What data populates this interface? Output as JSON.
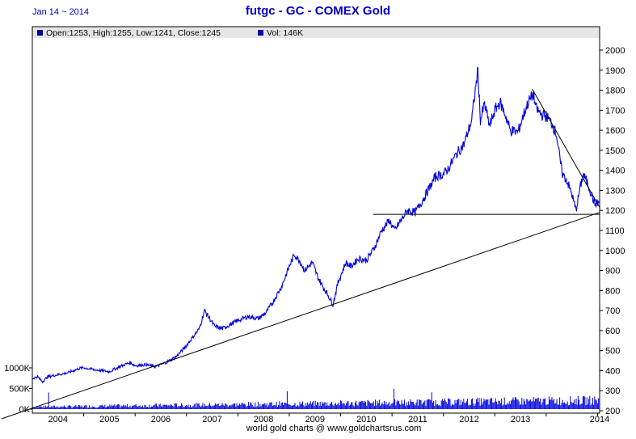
{
  "header": {
    "date": "Jan 14 ~ 2014",
    "title": "futgc - GC - COMEX Gold"
  },
  "legend": {
    "price_label": "Open:1253, High:1255, Low:1241, Close:1245",
    "volume_label": "Vol: 146K"
  },
  "footer": {
    "source": "world gold charts @ www.goldchartsrus.com"
  },
  "colors": {
    "series": "#0000e0",
    "legend_bg": "#e6e6e6",
    "title": "#0000cc",
    "trendline": "#000000"
  },
  "chart_data": {
    "type": "line",
    "title": "futgc - GC - COMEX Gold",
    "y_ticks": [
      200,
      300,
      400,
      500,
      600,
      700,
      800,
      900,
      1000,
      1100,
      1200,
      1300,
      1400,
      1500,
      1600,
      1700,
      1800,
      1900,
      2000
    ],
    "ylim": [
      200,
      2000
    ],
    "volume_ticks": [
      "0K",
      "500K",
      "1000K"
    ],
    "volume_max": 1500,
    "x_ticks": [
      "2004",
      "2005",
      "2006",
      "2007",
      "2008",
      "2009",
      "2010",
      "2011",
      "2012",
      "2013",
      "2014"
    ],
    "xlim": [
      2003.0,
      2014.04
    ],
    "grid": false,
    "series": [
      {
        "name": "Close",
        "x": [
          2003.0,
          2003.1,
          2003.2,
          2003.3,
          2003.5,
          2003.7,
          2003.9,
          2004.0,
          2004.2,
          2004.35,
          2004.5,
          2004.7,
          2004.9,
          2005.0,
          2005.2,
          2005.4,
          2005.6,
          2005.8,
          2005.95,
          2006.1,
          2006.25,
          2006.35,
          2006.45,
          2006.55,
          2006.7,
          2006.85,
          2007.0,
          2007.2,
          2007.4,
          2007.55,
          2007.7,
          2007.85,
          2008.0,
          2008.1,
          2008.2,
          2008.3,
          2008.45,
          2008.55,
          2008.65,
          2008.75,
          2008.85,
          2008.95,
          2009.1,
          2009.2,
          2009.35,
          2009.5,
          2009.65,
          2009.8,
          2009.95,
          2010.05,
          2010.15,
          2010.3,
          2010.45,
          2010.55,
          2010.7,
          2010.85,
          2011.0,
          2011.1,
          2011.25,
          2011.4,
          2011.55,
          2011.62,
          2011.67,
          2011.72,
          2011.8,
          2011.9,
          2012.0,
          2012.1,
          2012.2,
          2012.3,
          2012.45,
          2012.55,
          2012.65,
          2012.75,
          2012.8,
          2012.9,
          2013.0,
          2013.1,
          2013.2,
          2013.27,
          2013.32,
          2013.4,
          2013.5,
          2013.58,
          2013.65,
          2013.72,
          2013.8,
          2013.88,
          2013.95,
          2014.04
        ],
        "values": [
          360,
          370,
          345,
          370,
          380,
          390,
          410,
          415,
          405,
          400,
          395,
          420,
          440,
          425,
          430,
          420,
          440,
          470,
          510,
          560,
          610,
          700,
          660,
          620,
          610,
          630,
          650,
          670,
          660,
          690,
          750,
          820,
          920,
          980,
          950,
          900,
          940,
          870,
          820,
          780,
          730,
          840,
          940,
          920,
          960,
          950,
          1010,
          1100,
          1150,
          1100,
          1140,
          1200,
          1190,
          1230,
          1300,
          1370,
          1380,
          1410,
          1480,
          1530,
          1650,
          1800,
          1900,
          1650,
          1730,
          1620,
          1700,
          1740,
          1680,
          1600,
          1590,
          1670,
          1740,
          1780,
          1710,
          1680,
          1670,
          1640,
          1580,
          1450,
          1380,
          1350,
          1280,
          1200,
          1300,
          1380,
          1340,
          1280,
          1230,
          1245
        ]
      }
    ],
    "annotations": [
      {
        "type": "trendline",
        "from": [
          2003.0,
          198
        ],
        "to": [
          2014.04,
          1190
        ]
      },
      {
        "type": "trendline",
        "from": [
          2012.73,
          1805
        ],
        "to": [
          2014.04,
          1215
        ]
      },
      {
        "type": "horizontal",
        "from": [
          2009.63,
          1180
        ],
        "to": [
          2014.04,
          1180
        ]
      }
    ]
  }
}
